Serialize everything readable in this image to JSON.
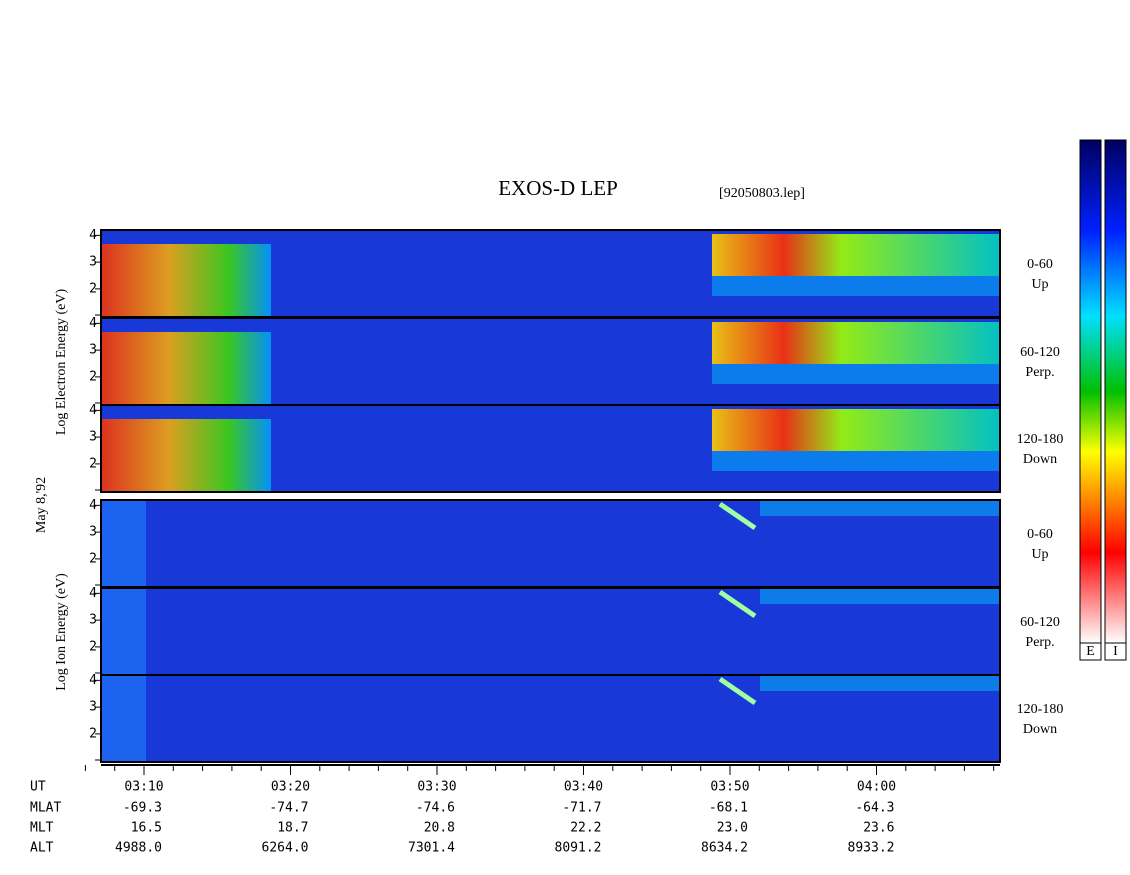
{
  "title": "EXOS-D LEP",
  "file": "[92050803.lep]",
  "date_label": "May  8,'92",
  "electron": {
    "ylabel": "Log  Electron  Energy (eV)",
    "panels": [
      {
        "angle": "0-60",
        "direction": "Up"
      },
      {
        "angle": "60-120",
        "direction": "Perp."
      },
      {
        "angle": "120-180",
        "direction": "Down"
      }
    ]
  },
  "ion": {
    "ylabel": "Log  Ion  Energy (eV)",
    "panels": [
      {
        "angle": "0-60",
        "direction": "Up"
      },
      {
        "angle": "60-120",
        "direction": "Perp."
      },
      {
        "angle": "120-180",
        "direction": "Down"
      }
    ]
  },
  "yticks": [
    2,
    3,
    4
  ],
  "ylim": [
    0.95,
    4.2
  ],
  "ephemeris": {
    "rows": [
      {
        "label": "UT",
        "values": [
          "03:10",
          "03:20",
          "03:30",
          "03:40",
          "03:50",
          "04:00"
        ]
      },
      {
        "label": "MLAT",
        "values": [
          "-69.3",
          "-74.7",
          "-74.6",
          "-71.7",
          "-68.1",
          "-64.3"
        ]
      },
      {
        "label": "MLT",
        "values": [
          "16.5",
          "18.7",
          "20.8",
          "22.2",
          "23.0",
          "23.6"
        ]
      },
      {
        "label": "ALT",
        "values": [
          "4988.0",
          "6264.0",
          "7301.4",
          "8091.2",
          "8634.2",
          "8933.2"
        ]
      }
    ]
  },
  "colorbars": [
    "E",
    "I"
  ]
}
